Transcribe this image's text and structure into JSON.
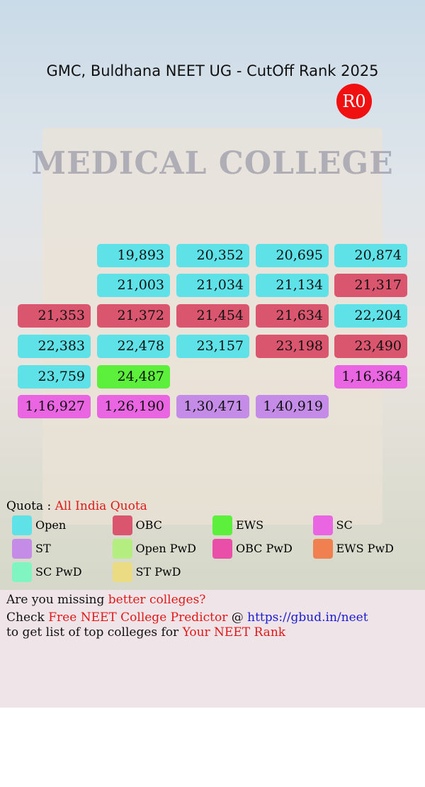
{
  "header": {
    "title": "GMC, Buldhana NEET UG - CutOff Rank 2025",
    "round": "R0",
    "background_text": "MEDICAL COLLEGE"
  },
  "legend": [
    {
      "name": "Open",
      "color": "#5fe1e8"
    },
    {
      "name": "OBC",
      "color": "#d9566e"
    },
    {
      "name": "EWS",
      "color": "#5cf03c"
    },
    {
      "name": "SC",
      "color": "#e965e2"
    },
    {
      "name": "ST",
      "color": "#c48ce6"
    },
    {
      "name": "Open PwD",
      "color": "#b4ee80"
    },
    {
      "name": "OBC PwD",
      "color": "#e94fa9"
    },
    {
      "name": "EWS PwD",
      "color": "#f0804f"
    },
    {
      "name": "SC PwD",
      "color": "#80f5c2"
    },
    {
      "name": "ST PwD",
      "color": "#ebdb82"
    }
  ],
  "grid": [
    [
      null,
      {
        "rank": "19,893",
        "category": 0
      },
      {
        "rank": "20,352",
        "category": 0
      },
      {
        "rank": "20,695",
        "category": 0
      },
      {
        "rank": "20,874",
        "category": 0
      }
    ],
    [
      null,
      {
        "rank": "21,003",
        "category": 0
      },
      {
        "rank": "21,034",
        "category": 0
      },
      {
        "rank": "21,134",
        "category": 0
      },
      {
        "rank": "21,317",
        "category": 1
      }
    ],
    [
      {
        "rank": "21,353",
        "category": 1
      },
      {
        "rank": "21,372",
        "category": 1
      },
      {
        "rank": "21,454",
        "category": 1
      },
      {
        "rank": "21,634",
        "category": 1
      },
      {
        "rank": "22,204",
        "category": 0
      }
    ],
    [
      {
        "rank": "22,383",
        "category": 0
      },
      {
        "rank": "22,478",
        "category": 0
      },
      {
        "rank": "23,157",
        "category": 0
      },
      {
        "rank": "23,198",
        "category": 1
      },
      {
        "rank": "23,490",
        "category": 1
      }
    ],
    [
      {
        "rank": "23,759",
        "category": 0
      },
      {
        "rank": "24,487",
        "category": 2
      },
      null,
      null,
      {
        "rank": "1,16,364",
        "category": 3
      }
    ],
    [
      {
        "rank": "1,16,927",
        "category": 3
      },
      {
        "rank": "1,26,190",
        "category": 3
      },
      {
        "rank": "1,30,471",
        "category": 4
      },
      {
        "rank": "1,40,919",
        "category": 4
      },
      null
    ]
  ],
  "quota": {
    "label": "Quota :",
    "value": "All India Quota"
  },
  "footer": {
    "line1": [
      "Are you missing",
      "better colleges?"
    ],
    "line2": [
      "Check",
      "Free NEET College Predictor",
      "@",
      "https://gbud.in/neet"
    ],
    "line3": [
      "to get list of top colleges for",
      "Your NEET Rank"
    ]
  }
}
